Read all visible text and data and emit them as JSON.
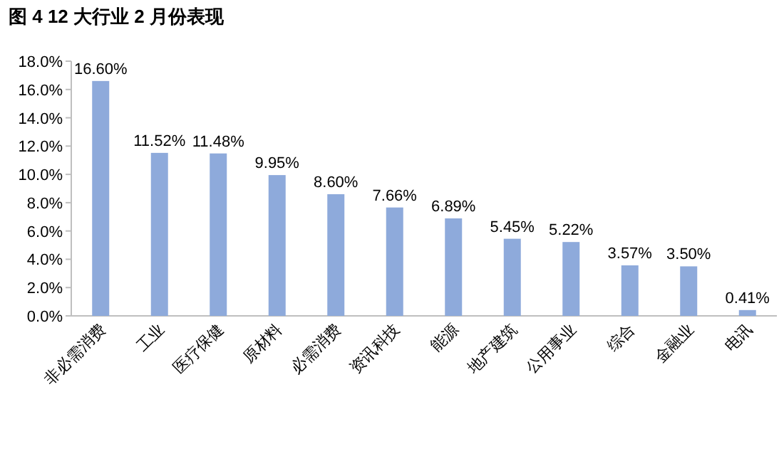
{
  "chart_data": {
    "type": "bar",
    "title": "图 4 12 大行业 2 月份表现",
    "categories": [
      "非必需消费",
      "工业",
      "医疗保健",
      "原材料",
      "必需消费",
      "资讯科技",
      "能源",
      "地产建筑",
      "公用事业",
      "综合",
      "金融业",
      "电讯"
    ],
    "values": [
      16.6,
      11.52,
      11.48,
      9.95,
      8.6,
      7.66,
      6.89,
      5.45,
      5.22,
      3.57,
      3.5,
      0.41
    ],
    "value_labels": [
      "16.60%",
      "11.52%",
      "11.48%",
      "9.95%",
      "8.60%",
      "7.66%",
      "6.89%",
      "5.45%",
      "5.22%",
      "3.57%",
      "3.50%",
      "0.41%"
    ],
    "color": "#8eaadb",
    "ylim": [
      0,
      18
    ],
    "yticks": [
      {
        "value": 0,
        "label": "0.0%"
      },
      {
        "value": 2,
        "label": "2.0%"
      },
      {
        "value": 4,
        "label": "4.0%"
      },
      {
        "value": 6,
        "label": "6.0%"
      },
      {
        "value": 8,
        "label": "8.0%"
      },
      {
        "value": 10,
        "label": "10.0%"
      },
      {
        "value": 12,
        "label": "12.0%"
      },
      {
        "value": 14,
        "label": "14.0%"
      },
      {
        "value": 16,
        "label": "16.0%"
      },
      {
        "value": 18,
        "label": "18.0%"
      }
    ]
  }
}
